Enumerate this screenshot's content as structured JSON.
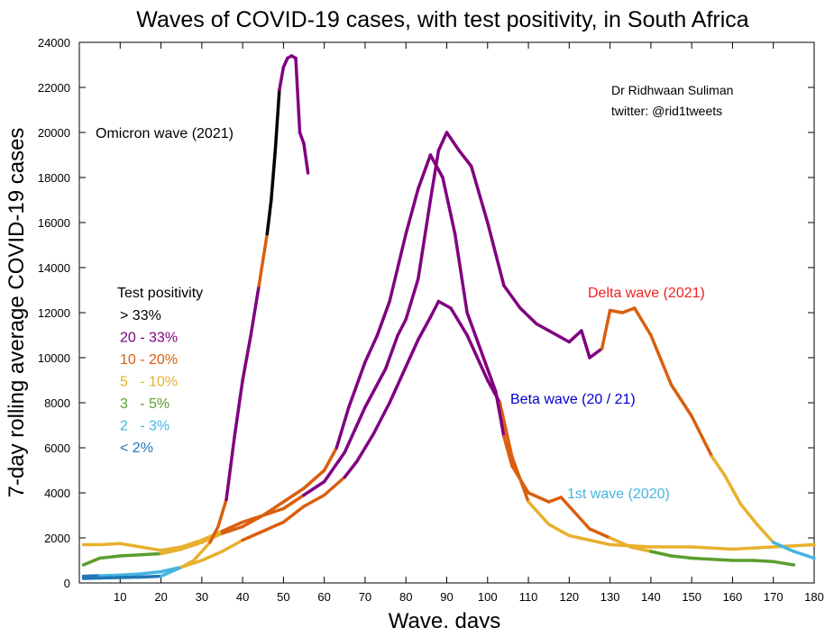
{
  "chart_data": {
    "type": "line",
    "title": "Waves of COVID-19 cases, with test positivity, in South Africa",
    "xlabel": "Wave, days",
    "ylabel": "7-day rolling average COVID-19 cases",
    "xlim": [
      0,
      180
    ],
    "ylim": [
      0,
      24000
    ],
    "x_ticks": [
      10,
      20,
      30,
      40,
      50,
      60,
      70,
      80,
      90,
      100,
      110,
      120,
      130,
      140,
      150,
      160,
      170,
      180
    ],
    "y_ticks": [
      0,
      2000,
      4000,
      6000,
      8000,
      10000,
      12000,
      14000,
      16000,
      18000,
      20000,
      22000,
      24000
    ],
    "grid": false,
    "credit": [
      "Dr Ridhwaan Suliman",
      "twitter: @rid1tweets"
    ],
    "legend": {
      "title": "Test positivity",
      "placement": "left",
      "entries": [
        {
          "label": "> 33%",
          "color": "#000000"
        },
        {
          "label": "20 - 33%",
          "color": "#800080"
        },
        {
          "label": "10 - 20%",
          "color": "#d95f0e"
        },
        {
          "label": "5   - 10%",
          "color": "#e8b02e"
        },
        {
          "label": "3   - 5%",
          "color": "#5a9e2f"
        },
        {
          "label": "2   - 3%",
          "color": "#45b5e0"
        },
        {
          "label": "< 2%",
          "color": "#1f77b4"
        }
      ]
    },
    "series": [
      {
        "name": "1st wave (2020)",
        "label_color": "#45b5e0",
        "points": [
          [
            1,
            300,
            "#1f77b4"
          ],
          [
            5,
            320,
            "#1f77b4"
          ],
          [
            10,
            350,
            "#45b5e0"
          ],
          [
            15,
            400,
            "#45b5e0"
          ],
          [
            20,
            500,
            "#45b5e0"
          ],
          [
            25,
            700,
            "#45b5e0"
          ],
          [
            30,
            1000,
            "#e8b02e"
          ],
          [
            35,
            1400,
            "#e8b02e"
          ],
          [
            40,
            1900,
            "#e8b02e"
          ],
          [
            45,
            2300,
            "#d95f0e"
          ],
          [
            50,
            2700,
            "#d95f0e"
          ],
          [
            55,
            3400,
            "#d95f0e"
          ],
          [
            60,
            3900,
            "#d95f0e"
          ],
          [
            65,
            4700,
            "#d95f0e"
          ],
          [
            68,
            5400,
            "#800080"
          ],
          [
            72,
            6600,
            "#800080"
          ],
          [
            76,
            8000,
            "#800080"
          ],
          [
            80,
            9600,
            "#800080"
          ],
          [
            83,
            10800,
            "#800080"
          ],
          [
            86,
            11800,
            "#800080"
          ],
          [
            88,
            12500,
            "#800080"
          ],
          [
            91,
            12200,
            "#800080"
          ],
          [
            95,
            11000,
            "#800080"
          ],
          [
            100,
            9000,
            "#800080"
          ],
          [
            103,
            8000,
            "#800080"
          ],
          [
            106,
            5600,
            "#d95f0e"
          ],
          [
            110,
            3600,
            "#d95f0e"
          ],
          [
            115,
            2600,
            "#e8b02e"
          ],
          [
            120,
            2100,
            "#e8b02e"
          ],
          [
            130,
            1700,
            "#e8b02e"
          ],
          [
            140,
            1600,
            "#e8b02e"
          ],
          [
            150,
            1600,
            "#e8b02e"
          ],
          [
            160,
            1500,
            "#e8b02e"
          ],
          [
            170,
            1600,
            "#e8b02e"
          ],
          [
            180,
            1700,
            "#e8b02e"
          ]
        ]
      },
      {
        "name": "Beta wave (20 / 21)",
        "label_color": "#0000cc",
        "points": [
          [
            1,
            1700,
            "#e8b02e"
          ],
          [
            5,
            1700,
            "#e8b02e"
          ],
          [
            10,
            1750,
            "#e8b02e"
          ],
          [
            15,
            1600,
            "#e8b02e"
          ],
          [
            20,
            1450,
            "#e8b02e"
          ],
          [
            25,
            1600,
            "#e8b02e"
          ],
          [
            30,
            1900,
            "#e8b02e"
          ],
          [
            35,
            2300,
            "#e8b02e"
          ],
          [
            40,
            2700,
            "#d95f0e"
          ],
          [
            45,
            3000,
            "#d95f0e"
          ],
          [
            50,
            3600,
            "#d95f0e"
          ],
          [
            55,
            4200,
            "#d95f0e"
          ],
          [
            60,
            5000,
            "#d95f0e"
          ],
          [
            63,
            6000,
            "#d95f0e"
          ],
          [
            66,
            7800,
            "#800080"
          ],
          [
            70,
            9800,
            "#800080"
          ],
          [
            73,
            11000,
            "#800080"
          ],
          [
            76,
            12500,
            "#800080"
          ],
          [
            80,
            15500,
            "#800080"
          ],
          [
            83,
            17500,
            "#800080"
          ],
          [
            86,
            19000,
            "#800080"
          ],
          [
            89,
            18000,
            "#800080"
          ],
          [
            92,
            15500,
            "#800080"
          ],
          [
            95,
            12000,
            "#800080"
          ],
          [
            98,
            10500,
            "#800080"
          ],
          [
            102,
            8500,
            "#800080"
          ],
          [
            104,
            6500,
            "#800080"
          ],
          [
            106,
            5200,
            "#d95f0e"
          ],
          [
            110,
            4000,
            "#d95f0e"
          ],
          [
            115,
            3600,
            "#d95f0e"
          ],
          [
            118,
            3800,
            "#d95f0e"
          ],
          [
            122,
            3000,
            "#d95f0e"
          ],
          [
            125,
            2400,
            "#d95f0e"
          ],
          [
            130,
            2000,
            "#d95f0e"
          ],
          [
            135,
            1600,
            "#e8b02e"
          ],
          [
            140,
            1400,
            "#e8b02e"
          ],
          [
            145,
            1200,
            "#5a9e2f"
          ],
          [
            150,
            1100,
            "#5a9e2f"
          ],
          [
            155,
            1050,
            "#5a9e2f"
          ],
          [
            160,
            1000,
            "#5a9e2f"
          ],
          [
            165,
            1000,
            "#5a9e2f"
          ],
          [
            170,
            950,
            "#5a9e2f"
          ],
          [
            175,
            800,
            "#5a9e2f"
          ]
        ]
      },
      {
        "name": "Delta wave (2021)",
        "label_color": "#ee2222",
        "points": [
          [
            1,
            800,
            "#5a9e2f"
          ],
          [
            5,
            1100,
            "#5a9e2f"
          ],
          [
            10,
            1200,
            "#5a9e2f"
          ],
          [
            15,
            1250,
            "#5a9e2f"
          ],
          [
            20,
            1300,
            "#5a9e2f"
          ],
          [
            25,
            1500,
            "#e8b02e"
          ],
          [
            30,
            1800,
            "#e8b02e"
          ],
          [
            35,
            2200,
            "#e8b02e"
          ],
          [
            40,
            2500,
            "#d95f0e"
          ],
          [
            45,
            3000,
            "#d95f0e"
          ],
          [
            50,
            3300,
            "#d95f0e"
          ],
          [
            55,
            3900,
            "#d95f0e"
          ],
          [
            60,
            4500,
            "#800080"
          ],
          [
            65,
            5800,
            "#800080"
          ],
          [
            70,
            7800,
            "#800080"
          ],
          [
            75,
            9500,
            "#800080"
          ],
          [
            78,
            11000,
            "#800080"
          ],
          [
            80,
            11700,
            "#800080"
          ],
          [
            83,
            13500,
            "#800080"
          ],
          [
            86,
            17000,
            "#800080"
          ],
          [
            88,
            19200,
            "#800080"
          ],
          [
            90,
            20000,
            "#800080"
          ],
          [
            93,
            19200,
            "#800080"
          ],
          [
            96,
            18500,
            "#800080"
          ],
          [
            100,
            16000,
            "#800080"
          ],
          [
            104,
            13200,
            "#800080"
          ],
          [
            108,
            12200,
            "#800080"
          ],
          [
            112,
            11500,
            "#800080"
          ],
          [
            115,
            11200,
            "#800080"
          ],
          [
            118,
            10900,
            "#800080"
          ],
          [
            120,
            10700,
            "#800080"
          ],
          [
            123,
            11200,
            "#800080"
          ],
          [
            125,
            10000,
            "#800080"
          ],
          [
            128,
            10400,
            "#800080"
          ],
          [
            130,
            12100,
            "#d95f0e"
          ],
          [
            133,
            12000,
            "#d95f0e"
          ],
          [
            136,
            12200,
            "#d95f0e"
          ],
          [
            140,
            11000,
            "#d95f0e"
          ],
          [
            145,
            8800,
            "#d95f0e"
          ],
          [
            150,
            7400,
            "#d95f0e"
          ],
          [
            155,
            5600,
            "#d95f0e"
          ],
          [
            158,
            4800,
            "#e8b02e"
          ],
          [
            162,
            3500,
            "#e8b02e"
          ],
          [
            166,
            2600,
            "#e8b02e"
          ],
          [
            170,
            1800,
            "#e8b02e"
          ],
          [
            175,
            1400,
            "#45b5e0"
          ],
          [
            180,
            1100,
            "#45b5e0"
          ]
        ]
      },
      {
        "name": "Omicron wave (2021)",
        "label_color": "#000000",
        "points": [
          [
            1,
            200,
            "#1f77b4"
          ],
          [
            5,
            220,
            "#1f77b4"
          ],
          [
            10,
            240,
            "#1f77b4"
          ],
          [
            15,
            260,
            "#1f77b4"
          ],
          [
            20,
            300,
            "#1f77b4"
          ],
          [
            25,
            700,
            "#45b5e0"
          ],
          [
            28,
            1000,
            "#e8b02e"
          ],
          [
            32,
            1800,
            "#e8b02e"
          ],
          [
            34,
            2500,
            "#d95f0e"
          ],
          [
            36,
            3700,
            "#d95f0e"
          ],
          [
            38,
            6500,
            "#800080"
          ],
          [
            40,
            9000,
            "#800080"
          ],
          [
            42,
            11000,
            "#800080"
          ],
          [
            44,
            13200,
            "#800080"
          ],
          [
            46,
            15500,
            "#d95f0e"
          ],
          [
            47,
            17000,
            "#000000"
          ],
          [
            48,
            19200,
            "#000000"
          ],
          [
            49,
            21900,
            "#000000"
          ],
          [
            50,
            22900,
            "#800080"
          ],
          [
            51,
            23300,
            "#800080"
          ],
          [
            52,
            23400,
            "#800080"
          ],
          [
            53,
            23300,
            "#800080"
          ],
          [
            54,
            20000,
            "#800080"
          ],
          [
            55,
            19500,
            "#800080"
          ],
          [
            56,
            18200,
            "#800080"
          ]
        ]
      }
    ]
  }
}
